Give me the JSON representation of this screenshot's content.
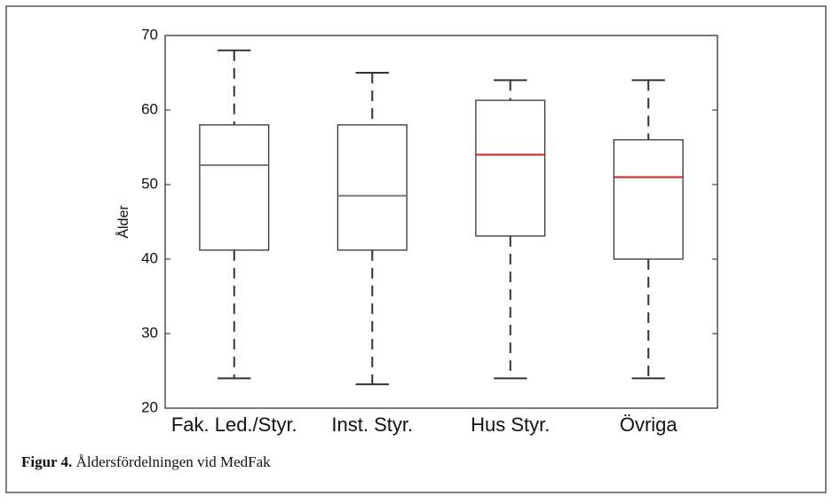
{
  "chart_data": {
    "type": "box",
    "y_label": "Ålder",
    "categories": [
      "Fak. Led./Styr.",
      "Inst. Styr.",
      "Hus Styr.",
      "Övriga"
    ],
    "min": [
      24,
      23.2,
      24,
      24
    ],
    "q1": [
      41.2,
      41.2,
      43.1,
      40
    ],
    "median": [
      52.6,
      48.5,
      54,
      51
    ],
    "q3": [
      58,
      58,
      61.3,
      56
    ],
    "max": [
      68,
      65,
      64,
      64
    ],
    "median_colors": [
      "#777777",
      "#777777",
      "#cc2222",
      "#cc2222"
    ],
    "box_color": "#333333",
    "ylim": [
      20,
      70
    ],
    "yticks": [
      20,
      30,
      40,
      50,
      60,
      70
    ],
    "grid": false
  },
  "caption": {
    "label": "Figur 4.",
    "text": "Åldersfördelningen vid MedFak"
  }
}
